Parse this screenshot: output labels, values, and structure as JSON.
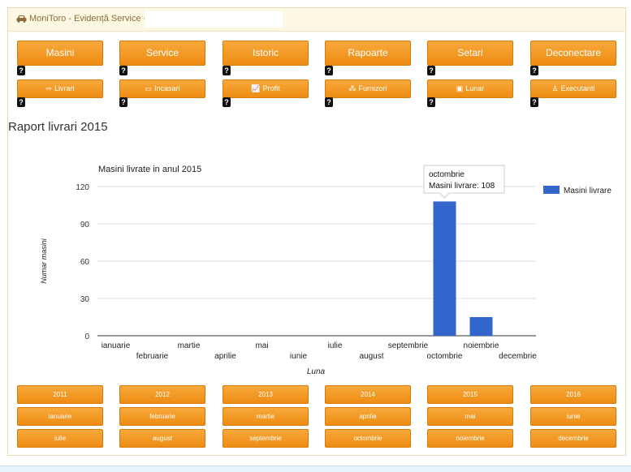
{
  "header": {
    "title": "MoniToro - Evidență Service -",
    "hidden_value": ""
  },
  "main_nav": [
    {
      "label": "Masini",
      "help": "?"
    },
    {
      "label": "Service",
      "help": "?"
    },
    {
      "label": "Istoric",
      "help": "?"
    },
    {
      "label": "Rapoarte",
      "help": "?"
    },
    {
      "label": "Setari",
      "help": "?"
    },
    {
      "label": "Deconectare",
      "help": "?"
    }
  ],
  "sub_nav": [
    {
      "label": "Livrari",
      "icon": "sign-out-icon",
      "glyph": "⇨",
      "help": "?"
    },
    {
      "label": "Incasari",
      "icon": "money-icon",
      "glyph": "▭",
      "help": "?"
    },
    {
      "label": "Profit",
      "icon": "line-chart-icon",
      "glyph": "📈",
      "help": "?"
    },
    {
      "label": "Furnizori",
      "icon": "sitemap-icon",
      "glyph": "⁂",
      "help": "?"
    },
    {
      "label": "Lunar",
      "icon": "calendar-icon",
      "glyph": "▣",
      "help": "?"
    },
    {
      "label": "Executanti",
      "icon": "user-icon",
      "glyph": "♙",
      "help": "?"
    }
  ],
  "report": {
    "title": "Raport livrari 2015"
  },
  "chart_data": {
    "type": "bar",
    "title": "Masini livrate in anul 2015",
    "xlabel": "Luna",
    "ylabel": "Numar masini",
    "categories": [
      "ianuarie",
      "februarie",
      "martie",
      "aprilie",
      "mai",
      "iunie",
      "iulie",
      "august",
      "septembrie",
      "octombrie",
      "noiembrie",
      "decembrie"
    ],
    "series": [
      {
        "name": "Masini livrare",
        "values": [
          0,
          0,
          0,
          0,
          0,
          0,
          0,
          0,
          0,
          108,
          15,
          0
        ],
        "color": "#3366cc"
      }
    ],
    "ylim": [
      0,
      120
    ],
    "yticks": [
      "0",
      "30",
      "60",
      "90",
      "120"
    ],
    "grid": true,
    "legend": "right",
    "tooltip": {
      "category": "octombrie",
      "text": "Masini livrare: 108"
    }
  },
  "year_buttons": [
    "2011",
    "2012",
    "2013",
    "2014",
    "2015",
    "2016"
  ],
  "month_buttons": [
    "ianuarie",
    "februarie",
    "martie",
    "aprilie",
    "mai",
    "iunie",
    "iulie",
    "august",
    "septembrie",
    "octombrie",
    "noiembrie",
    "decembrie"
  ]
}
